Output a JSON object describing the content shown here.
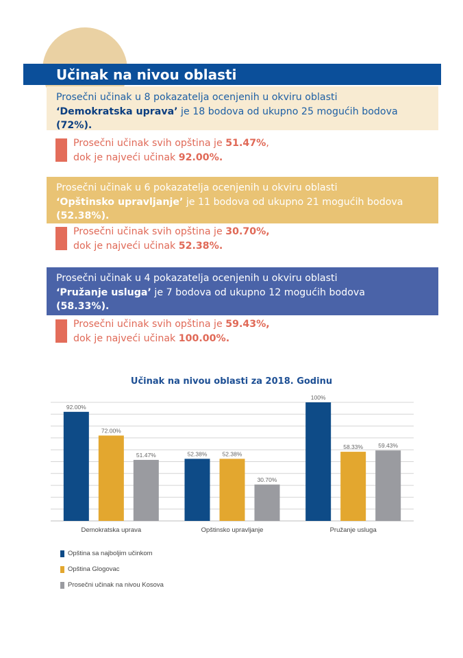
{
  "header": {
    "title": "Učinak na nivou oblasti"
  },
  "sections": [
    {
      "intro_a": "Prosečni učinak u 8 pokazatelja ocenjenih u okviru oblasti",
      "area": "‘Demokratska uprava’",
      "intro_b": " je 18 bodova od ukupno 25 mogućih bodova",
      "percent": "(72%).",
      "avg_a": "Prosečni učinak svih opština je ",
      "avg_value": "51.47%",
      "avg_b": ",",
      "max_a": "dok je najveći učinak ",
      "max_value": "92.00%."
    },
    {
      "intro_a": "Prosečni učinak u 6 pokazatelja ocenjenih u okviru oblasti",
      "area": "‘Opštinsko upravljanje’",
      "intro_b": " je 11 bodova od ukupno 21 mogućih bodova",
      "percent": "(52.38%).",
      "avg_a": "Prosečni učinak svih opština je ",
      "avg_value": "30.70%,",
      "avg_b": "",
      "max_a": "dok je najveći učinak ",
      "max_value": "52.38%."
    },
    {
      "intro_a": "Prosečni učinak u 4 pokazatelja ocenjenih u okviru oblasti",
      "area": "‘Pružanje usluga’",
      "intro_b": " je 7 bodova od ukupno 12 mogućih bodova",
      "percent": "(58.33%).",
      "avg_a": "Prosečni učinak svih opština je ",
      "avg_value": "59.43%,",
      "avg_b": "",
      "max_a": "dok je najveći učinak ",
      "max_value": "100.00%."
    }
  ],
  "colors": {
    "title_bar": "#0b4f9a",
    "accent_note": "#e36d5a",
    "series_best": "#0e4b87",
    "series_glogovac": "#e3a72f",
    "series_kosovo": "#9a9ba0"
  },
  "chart_data": {
    "type": "bar",
    "title": "Učinak na nivou oblasti za 2018. Godinu",
    "categories": [
      "Demokratska uprava",
      "Opštinsko upravljanje",
      "Pružanje usluga"
    ],
    "series": [
      {
        "name": "Opština sa najboljim učinkom",
        "values": [
          92.0,
          52.38,
          100
        ],
        "labels": [
          "92.00%",
          "52.38%",
          "100%"
        ],
        "color": "#0e4b87"
      },
      {
        "name": "Opština Glogovac",
        "values": [
          72.0,
          52.38,
          58.33
        ],
        "labels": [
          "72.00%",
          "52.38%",
          "58.33%"
        ],
        "color": "#e3a72f"
      },
      {
        "name": "Prosečni učinak na nivou Kosova",
        "values": [
          51.47,
          30.7,
          59.43
        ],
        "labels": [
          "51.47%",
          "30.70%",
          "59.43%"
        ],
        "color": "#9a9ba0"
      }
    ],
    "ylim": [
      0,
      100
    ],
    "grid": true,
    "legend": "bottom-left"
  }
}
